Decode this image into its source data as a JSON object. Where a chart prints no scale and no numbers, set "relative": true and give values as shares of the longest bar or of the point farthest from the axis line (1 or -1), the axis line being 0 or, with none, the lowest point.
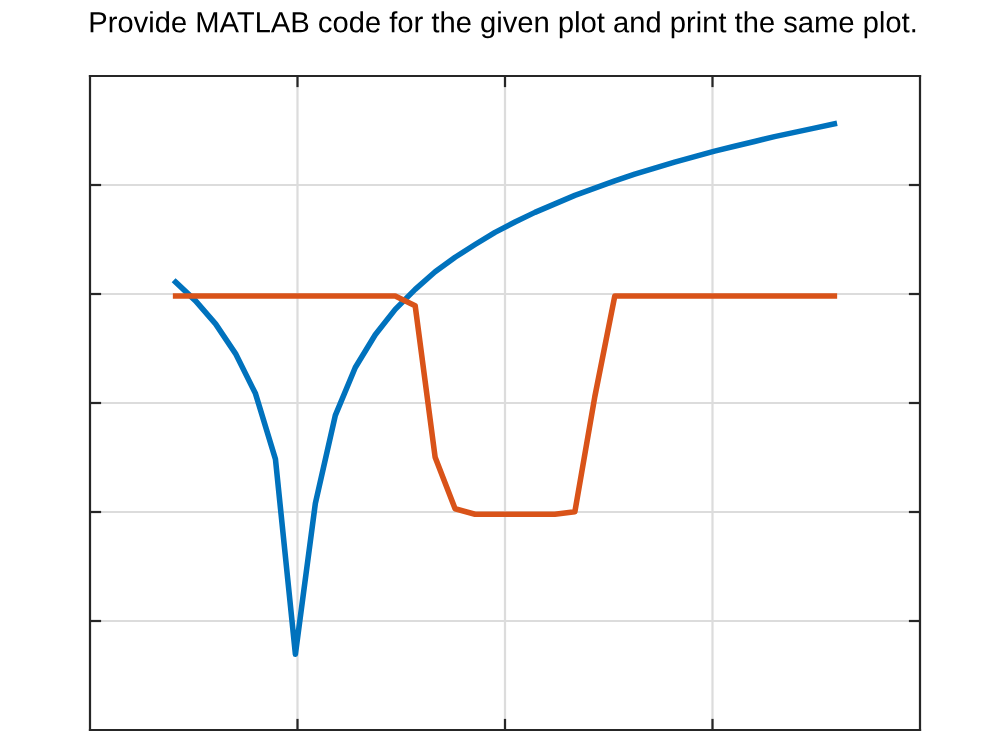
{
  "chart_data": {
    "type": "line",
    "title": "Provide MATLAB code for the given plot and print the same plot.",
    "relative": true,
    "grid": true,
    "tick_labels": false,
    "categories": [
      null,
      null,
      null,
      null,
      null,
      null,
      null,
      null,
      null,
      null,
      null,
      null,
      null,
      null,
      null,
      null,
      null,
      null,
      null,
      null,
      null,
      null,
      null,
      null,
      null,
      null,
      null,
      null,
      null,
      null,
      null,
      null,
      null,
      null
    ],
    "series": [
      {
        "color": "#0072bd",
        "values": [
          0.739,
          0.708,
          0.67,
          0.621,
          0.555,
          0.447,
          0.125,
          0.374,
          0.519,
          0.598,
          0.652,
          0.694,
          0.727,
          0.756,
          0.78,
          0.801,
          0.821,
          0.838,
          0.854,
          0.868,
          0.882,
          0.894,
          0.906,
          0.917,
          0.927,
          0.937,
          0.946,
          0.955,
          0.963,
          0.971,
          0.979,
          0.986,
          0.993,
          1.0
        ]
      },
      {
        "color": "#d95319",
        "values": [
          0.716,
          0.716,
          0.716,
          0.716,
          0.716,
          0.716,
          0.716,
          0.716,
          0.716,
          0.716,
          0.716,
          0.716,
          0.7,
          0.45,
          0.365,
          0.356,
          0.356,
          0.356,
          0.356,
          0.356,
          0.36,
          0.55,
          0.716,
          0.716,
          0.716,
          0.716,
          0.716,
          0.716,
          0.716,
          0.716,
          0.716,
          0.716,
          0.716,
          0.716
        ]
      }
    ]
  }
}
